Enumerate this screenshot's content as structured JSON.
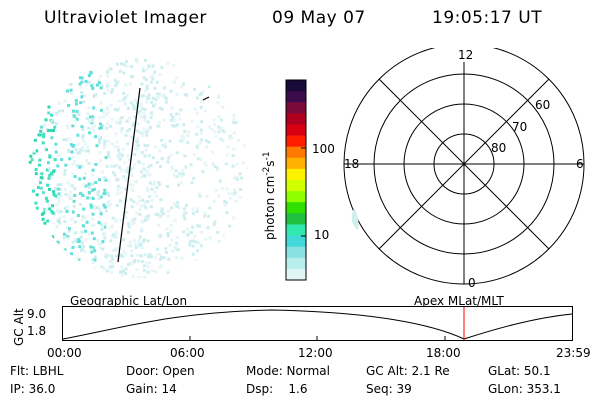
{
  "header": {
    "instrument": "Ultraviolet Imager",
    "date": "09 May 07",
    "time": "19:05:17 UT"
  },
  "colorbar": {
    "unit_label": "photon cm",
    "unit_exp1": "-2",
    "unit_s": "s",
    "unit_exp2": "-1",
    "tick_100": "100",
    "tick_10": "10",
    "colors": [
      "#1a0a3a",
      "#3a0a4a",
      "#7a0a3a",
      "#b00020",
      "#d80010",
      "#ff1e00",
      "#ff7a00",
      "#ffb000",
      "#fff000",
      "#d0ff00",
      "#8fff00",
      "#30e000",
      "#20c040",
      "#30e8b0",
      "#40d8d8",
      "#88e0e0",
      "#b8eeee",
      "#e0f6f6"
    ]
  },
  "polar_plot": {
    "hour_top": "12",
    "hour_left": "18",
    "hour_right": "6",
    "hour_bottom": "0",
    "lat_60": "60",
    "lat_70": "70",
    "lat_80": "80"
  },
  "timeline": {
    "left_caption": "Geographic Lat/Lon",
    "right_caption": "Apex MLat/MLT",
    "axis_title": "GC Alt",
    "y_top": "9.0",
    "y_bottom": "1.8",
    "x_labels": [
      "00:00",
      "06:00",
      "12:00",
      "18:00",
      "23:59"
    ],
    "marker_color": "#ff0000"
  },
  "footer": {
    "filter": "Flt: LBHL",
    "door": "Door: Open",
    "mode": "Mode: Normal",
    "gc_alt": "GC Alt: 2.1 Re",
    "glat": "GLat:  50.1",
    "ip": "IP: 36.0",
    "gain": "Gain: 14",
    "dsp": "Dsp:    1.6",
    "seq": "Seq: 39",
    "glon": "GLon: 353.1"
  }
}
